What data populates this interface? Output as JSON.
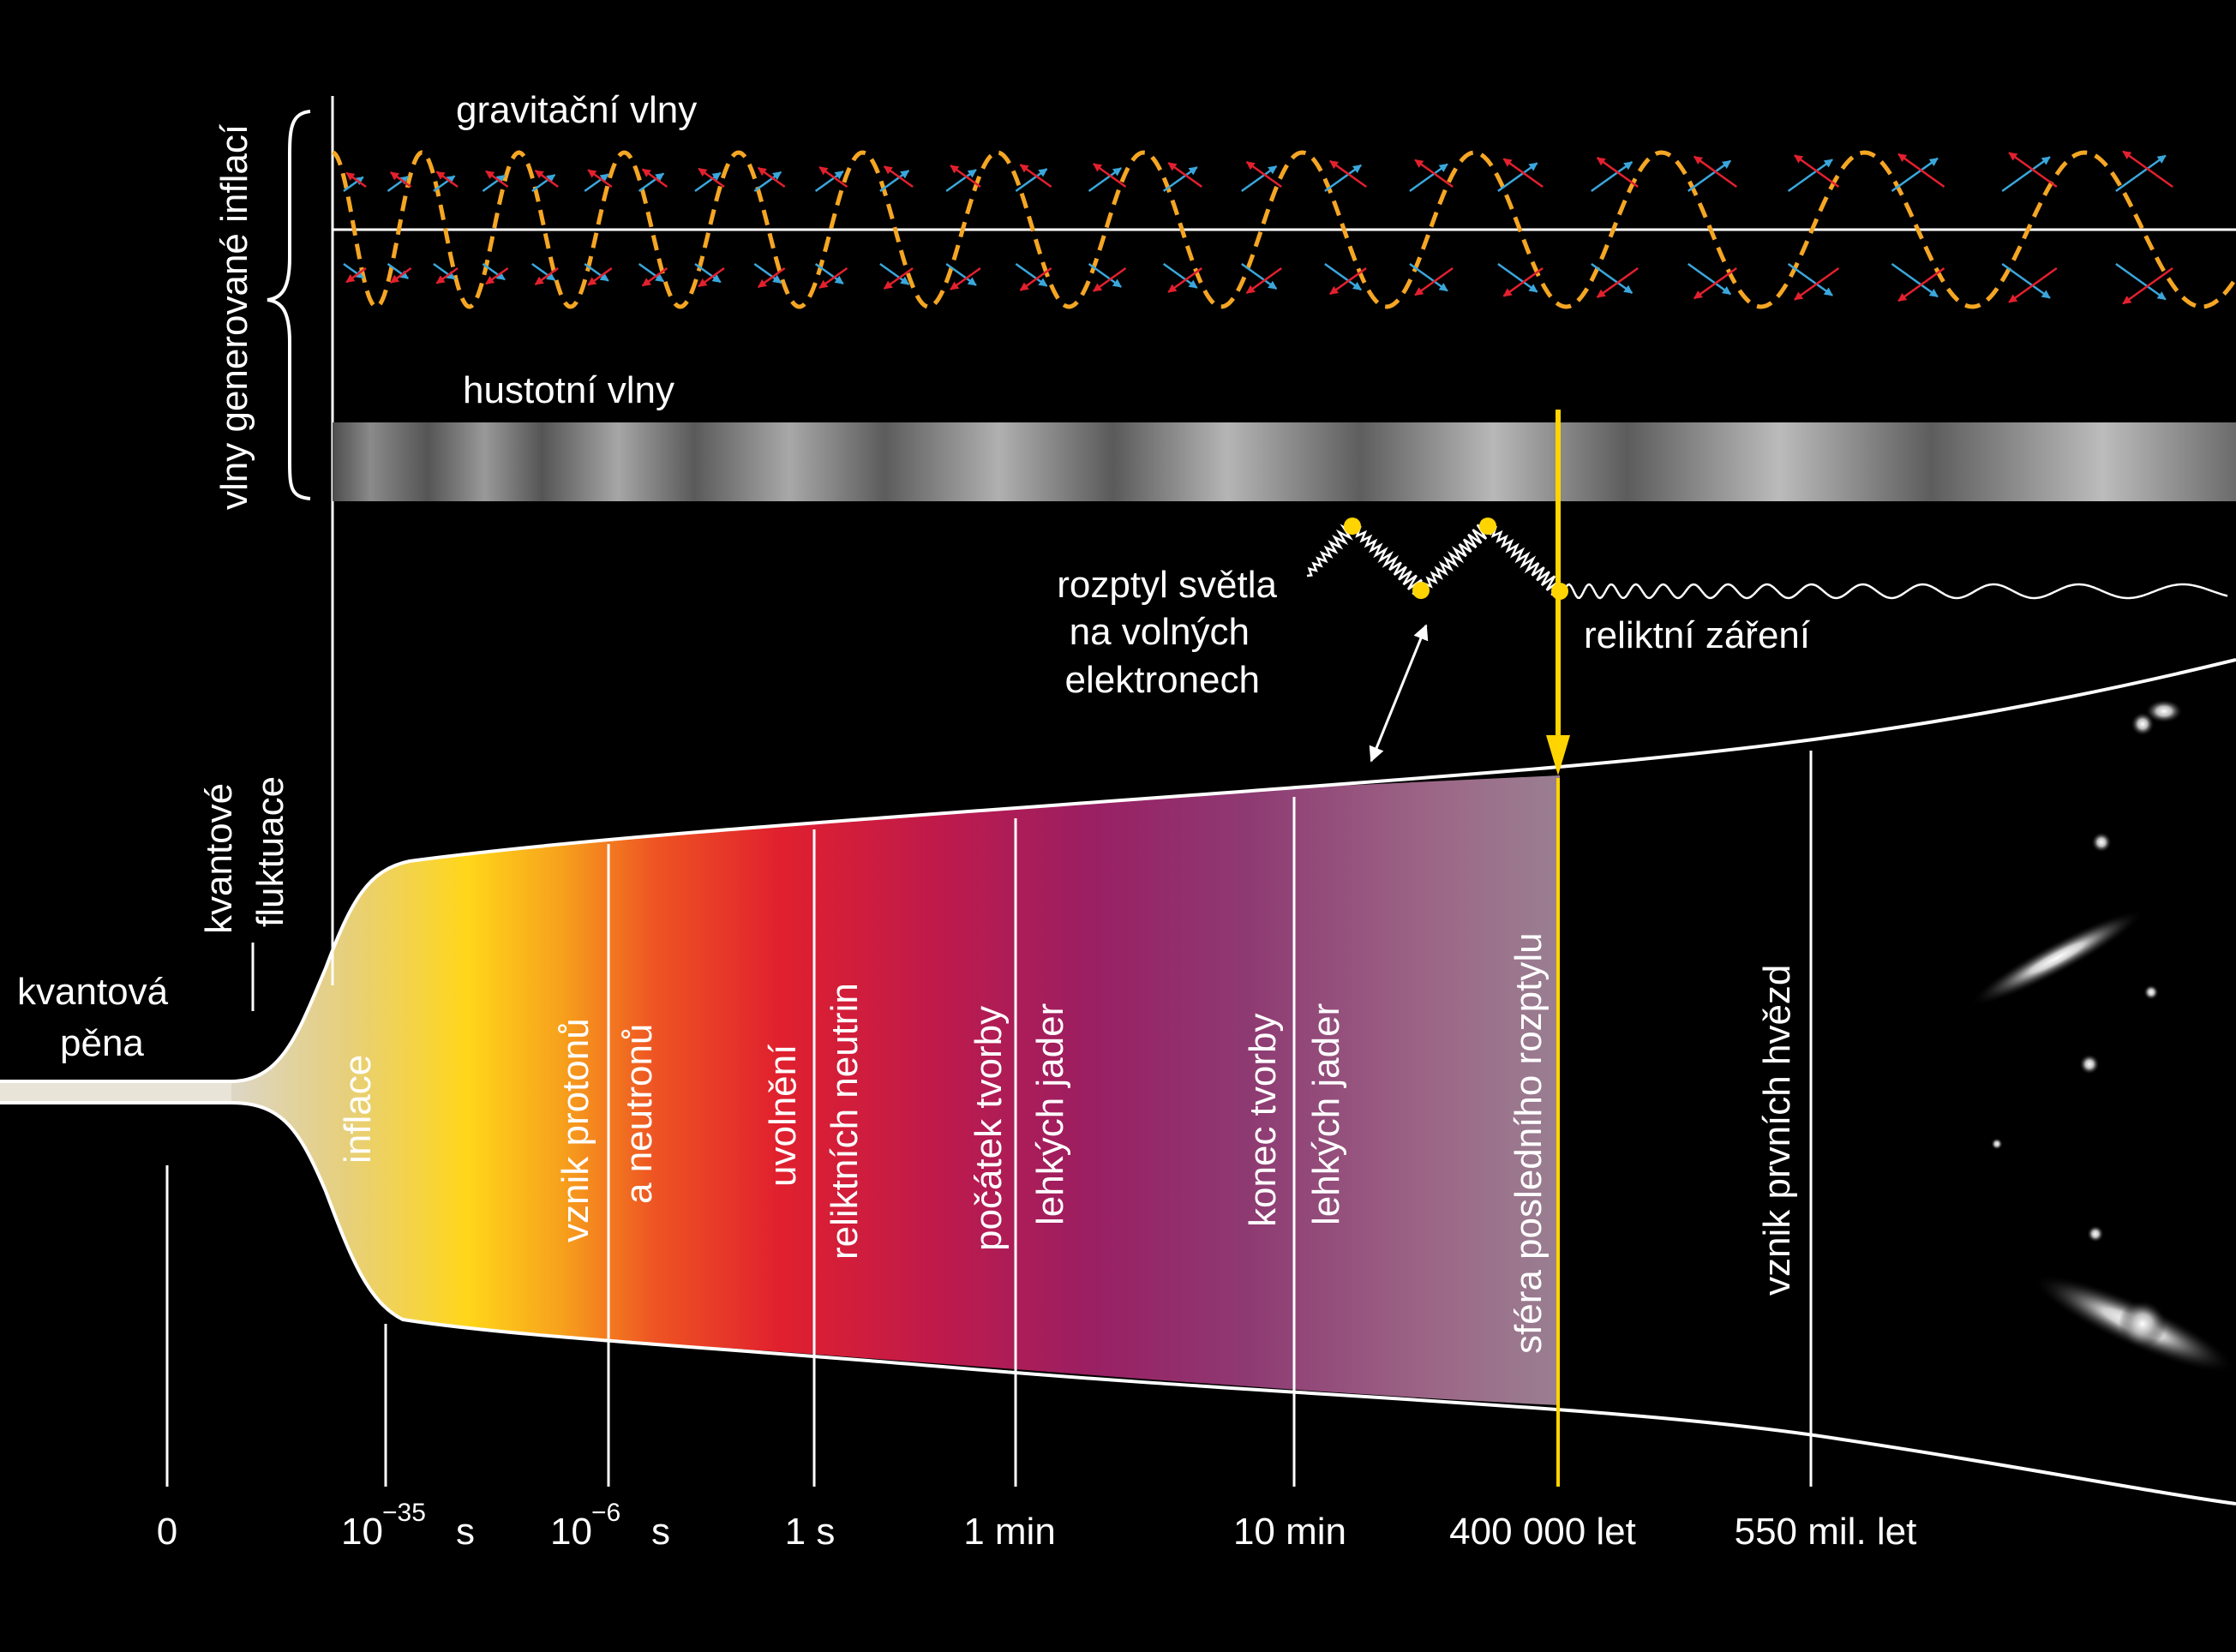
{
  "labels": {
    "gravitational_waves": "gravitační vlny",
    "density_waves": "hustotní vlny",
    "inflation_waves": "vlny generované inflací",
    "scattering": [
      "rozptyl světla",
      "na volných",
      "elektronech"
    ],
    "relic_radiation": "reliktní záření",
    "quantum_fluctuations": [
      "kvantové",
      "fluktuace"
    ],
    "quantum_foam": [
      "kvantová",
      "pěna"
    ]
  },
  "epochs": {
    "inflation": [
      "inflace"
    ],
    "protons": [
      "vznik protonů",
      "a neutronů"
    ],
    "neutrinos": [
      "uvolnění",
      "reliktních neutrin"
    ],
    "nucleo_start": [
      "počátek tvorby",
      "lehkých jader"
    ],
    "nucleo_end": [
      "konec tvorby",
      "lehkých jader"
    ],
    "last_scattering": [
      "sféra posledního rozptylu"
    ],
    "first_stars": [
      "vznik prvních hvězd"
    ]
  },
  "timeline": {
    "t0": "0",
    "t_inflation_base": "10",
    "t_inflation_exp": "−35",
    "t_inflation_unit": "s",
    "t_protons_base": "10",
    "t_protons_exp": "−6",
    "t_protons_unit": "s",
    "t_1s": "1 s",
    "t_1min": "1 min",
    "t_10min": "10 min",
    "t_400k": "400 000 let",
    "t_550m": "550 mil. let"
  },
  "colors": {
    "background": "#000000",
    "gravity_wave": "#f5a623",
    "arrow_blue": "#3aa7dc",
    "arrow_red": "#e3202e",
    "highlight_yellow": "#ffd400"
  }
}
